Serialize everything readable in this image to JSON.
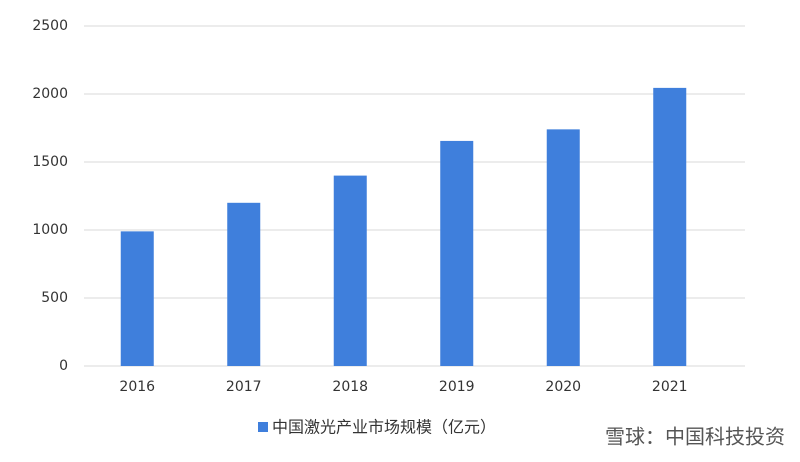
{
  "chart_data": {
    "type": "bar",
    "categories": [
      "2016",
      "2017",
      "2018",
      "2019",
      "2020",
      "2021"
    ],
    "series": [
      {
        "name": "中国激光产业市场规模（亿元）",
        "color": "#3f7fdc",
        "values": [
          990,
          1200,
          1400,
          1655,
          1740,
          2045
        ]
      }
    ],
    "ylim": [
      0,
      2500
    ],
    "yticks": [
      0,
      500,
      1000,
      1500,
      2000,
      2500
    ],
    "grid": true,
    "legend": "bottom",
    "watermark": "雪球：中国科技投资"
  }
}
